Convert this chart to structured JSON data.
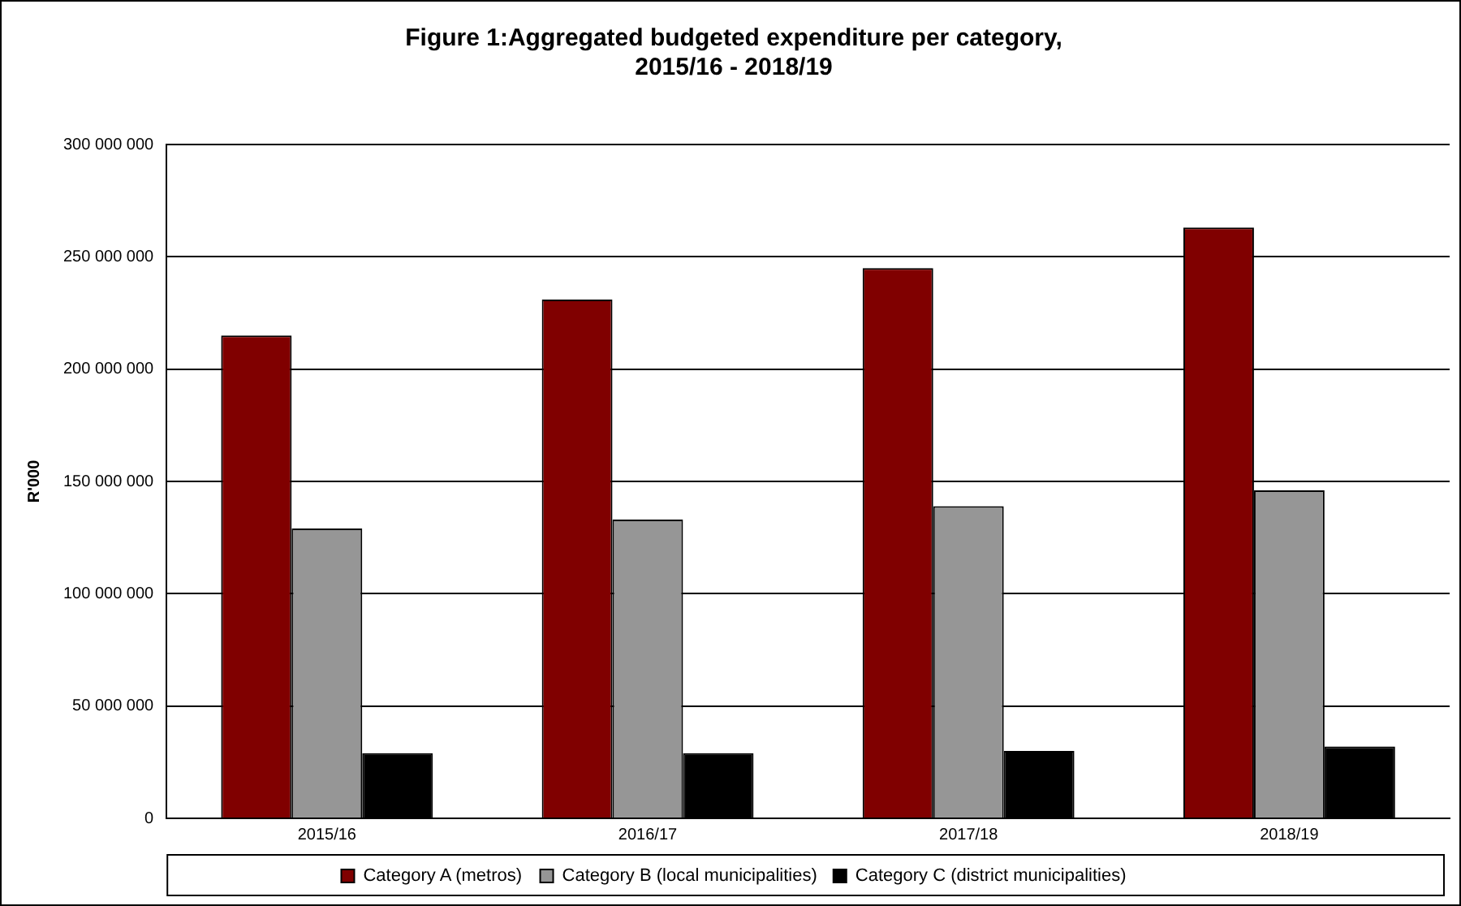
{
  "chart_data": {
    "type": "bar",
    "title": "Figure 1:Aggregated budgeted expenditure per category, 2015/16 - 2018/19",
    "ylabel": "R'000",
    "categories": [
      "2015/16",
      "2016/17",
      "2017/18",
      "2018/19"
    ],
    "series": [
      {
        "name": "Category A (metros)",
        "color": "#800000",
        "values": [
          215000000,
          231000000,
          245000000,
          263000000
        ]
      },
      {
        "name": "Category B (local municipalities)",
        "color": "#969696",
        "values": [
          129000000,
          133000000,
          139000000,
          146000000
        ]
      },
      {
        "name": "Category C (district municipalities)",
        "color": "#000000",
        "values": [
          29000000,
          29000000,
          30000000,
          32000000
        ]
      }
    ],
    "ylim": [
      0,
      300000000
    ],
    "yticks": [
      {
        "value": 0,
        "label": "0"
      },
      {
        "value": 50000000,
        "label": "50 000 000"
      },
      {
        "value": 100000000,
        "label": "100 000 000"
      },
      {
        "value": 150000000,
        "label": "150 000 000"
      },
      {
        "value": 200000000,
        "label": "200 000 000"
      },
      {
        "value": 250000000,
        "label": "250 000 000"
      },
      {
        "value": 300000000,
        "label": "300 000 000"
      }
    ],
    "grid": "y",
    "legend": "bottom"
  }
}
